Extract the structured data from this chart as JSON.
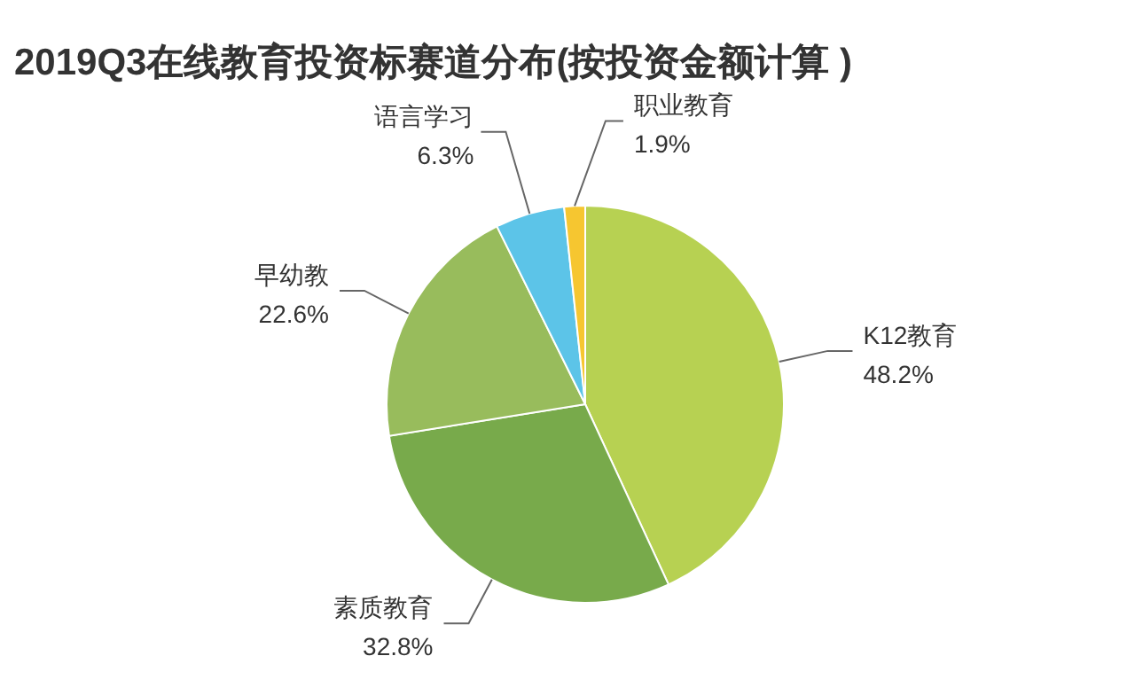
{
  "chart_data": {
    "type": "pie",
    "title": "2019Q3在线教育投资标赛道分布(按投资金额计算 )",
    "categories": [
      "K12教育",
      "素质教育",
      "早幼教",
      "语言学习",
      "职业教育"
    ],
    "values": [
      48.2,
      32.8,
      22.6,
      6.3,
      1.9
    ],
    "colors": [
      "#b7d152",
      "#78aa4b",
      "#98bc5c",
      "#5cc4e8",
      "#f6c630"
    ],
    "value_labels": [
      "48.2%",
      "32.8%",
      "22.6%",
      "6.3%",
      "1.9%"
    ]
  }
}
